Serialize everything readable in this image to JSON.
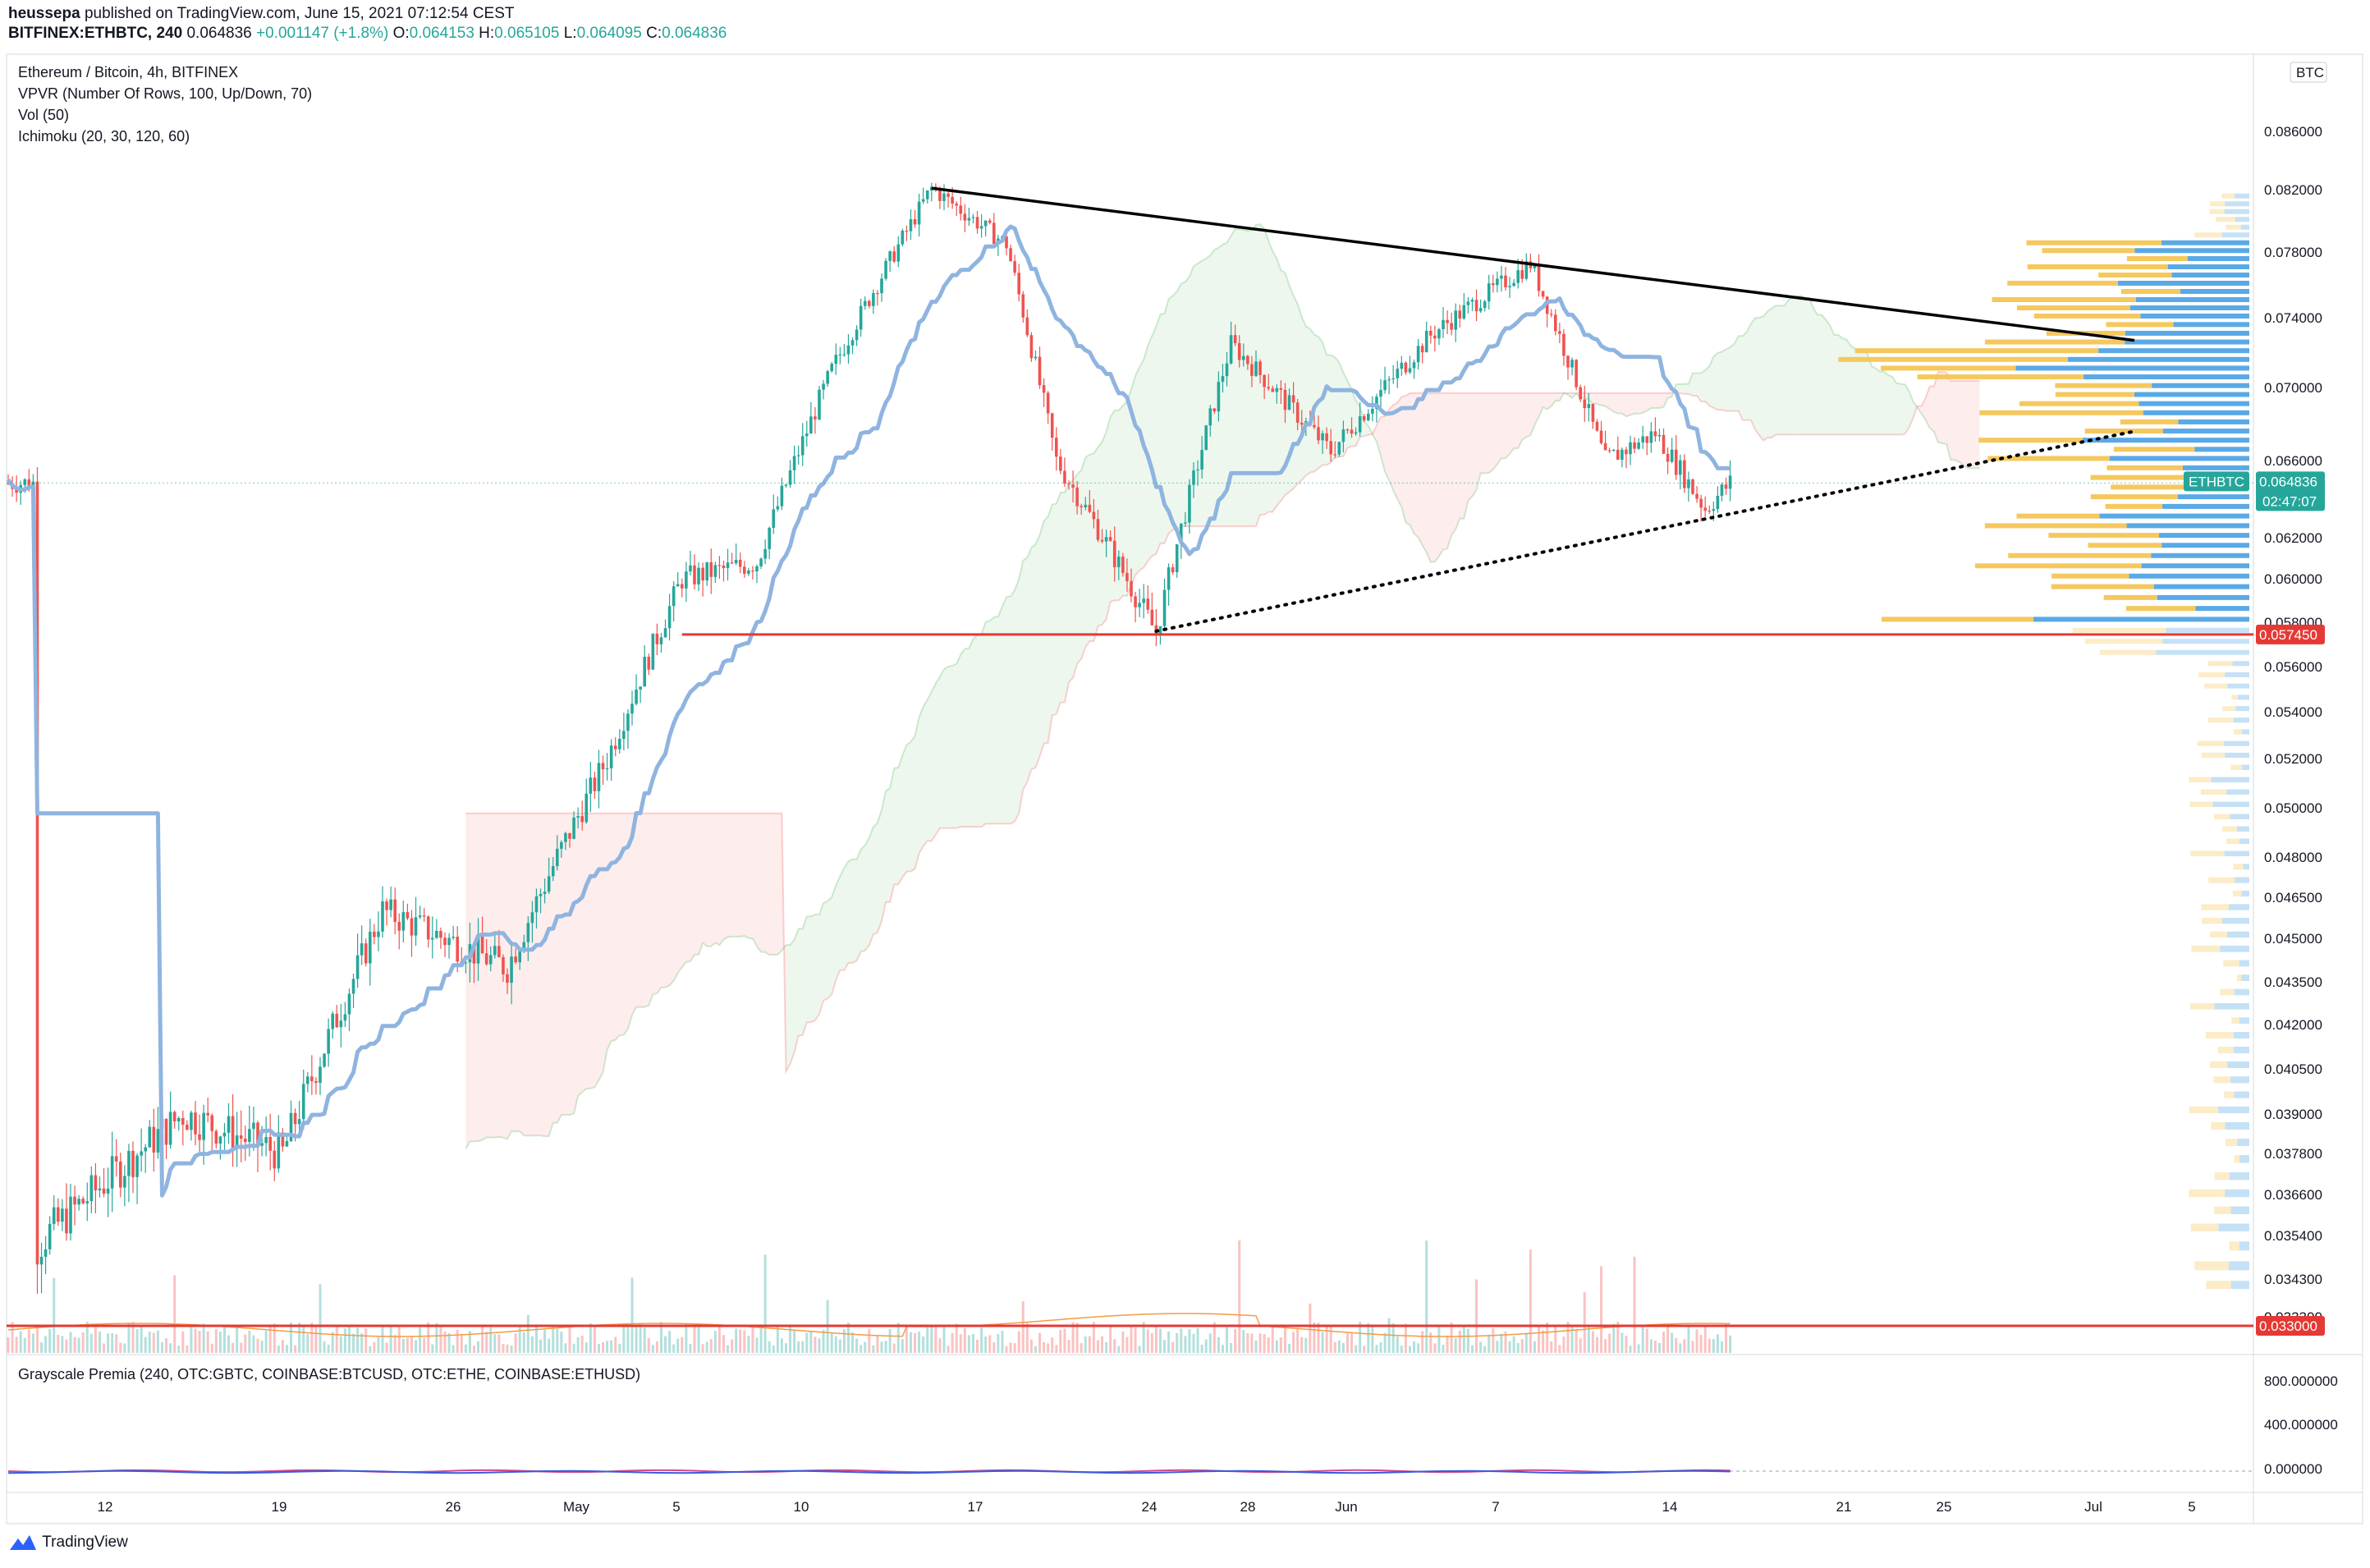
{
  "header": {
    "publisher": "heussepa",
    "published_text": "published on TradingView.com, June 15, 2021 07:12:54 CEST",
    "symbol": "BITFINEX:ETHBTC, 240",
    "last": "0.064836",
    "change": "+0.001147 (+1.8%)",
    "open_label": "O:",
    "open": "0.064153",
    "high_label": "H:",
    "high": "0.065105",
    "low_label": "L:",
    "low": "0.064095",
    "close_label": "C:",
    "close": "0.064836"
  },
  "legend": {
    "title": "Ethereum / Bitcoin, 4h, BITFINEX",
    "vpvr": "VPVR (Number Of Rows, 100, Up/Down, 70)",
    "vol": "Vol (50)",
    "ichimoku": "Ichimoku (20, 30, 120, 60)",
    "sub_pane": "Grayscale Premia (240, OTC:GBTC, COINBASE:BTCUSD, OTC:ETHE, COINBASE:ETHUSD)"
  },
  "axis": {
    "currency": "BTC",
    "price_ticks": [
      "0.086000",
      "0.082000",
      "0.078000",
      "0.074000",
      "0.070000",
      "0.066000",
      "0.062000",
      "0.060000",
      "0.058000",
      "0.056000",
      "0.054000",
      "0.052000",
      "0.050000",
      "0.048000",
      "0.046500",
      "0.045000",
      "0.043500",
      "0.042000",
      "0.040500",
      "0.039000",
      "0.037800",
      "0.036600",
      "0.035400",
      "0.034300",
      "0.033300"
    ],
    "sub_ticks": [
      "800.000000",
      "400.000000",
      "0.000000"
    ],
    "date_ticks": [
      "12",
      "19",
      "26",
      "May",
      "5",
      "10",
      "17",
      "24",
      "28",
      "Jun",
      "7",
      "14",
      "21",
      "25",
      "Jul",
      "5"
    ]
  },
  "tags": {
    "symbol": "ETHBTC",
    "price": "0.064836",
    "countdown": "02:47:07",
    "support": "0.057450",
    "lower": "0.033000"
  },
  "colors": {
    "up": "#26a69a",
    "down": "#ef5350",
    "kijun": "#8fb4e0",
    "vpvr_up": "#5aa9e6",
    "vpvr_down": "#f5c85e",
    "level": "#e53935"
  },
  "chart_data": {
    "type": "candlestick",
    "title": "Ethereum / Bitcoin, 4h, BITFINEX",
    "x_ticks": [
      "12",
      "19",
      "26",
      "May",
      "5",
      "10",
      "17",
      "24",
      "28",
      "Jun",
      "7",
      "14",
      "21",
      "25",
      "Jul",
      "5"
    ],
    "y_range": [
      0.0325,
      0.088
    ],
    "key_prices": [
      {
        "date": "Apr 8",
        "close": 0.0351
      },
      {
        "date": "Apr 14",
        "close": 0.039
      },
      {
        "date": "Apr 18",
        "close": 0.0378
      },
      {
        "date": "Apr 22",
        "close": 0.046
      },
      {
        "date": "Apr 27",
        "close": 0.044
      },
      {
        "date": "May 1",
        "close": 0.052
      },
      {
        "date": "May 4",
        "close": 0.06
      },
      {
        "date": "May 7",
        "close": 0.0608
      },
      {
        "date": "May 10",
        "close": 0.071
      },
      {
        "date": "May 14",
        "close": 0.0821
      },
      {
        "date": "May 17",
        "close": 0.0785
      },
      {
        "date": "May 19",
        "close": 0.066
      },
      {
        "date": "May 23",
        "close": 0.0575
      },
      {
        "date": "May 26",
        "close": 0.0725
      },
      {
        "date": "May 30",
        "close": 0.0665
      },
      {
        "date": "Jun 3",
        "close": 0.073
      },
      {
        "date": "Jun 7",
        "close": 0.0773
      },
      {
        "date": "Jun 10",
        "close": 0.066
      },
      {
        "date": "Jun 12",
        "close": 0.0675
      },
      {
        "date": "Jun 14",
        "close": 0.0635
      },
      {
        "date": "Jun 15",
        "close": 0.064836
      }
    ],
    "horizontal_levels": [
      0.05745,
      0.033
    ]
  }
}
